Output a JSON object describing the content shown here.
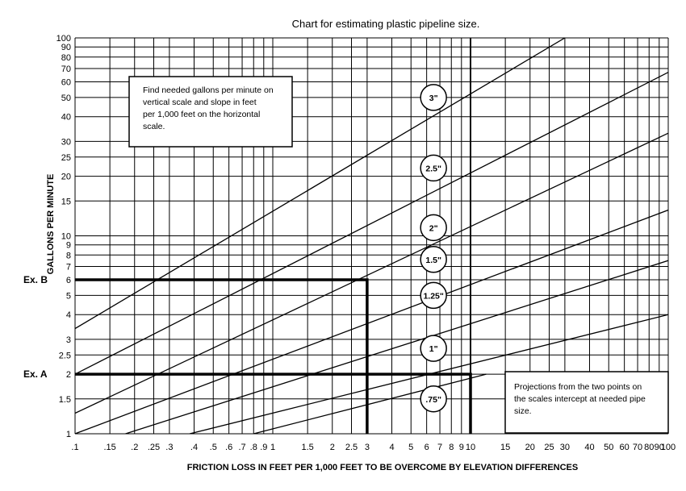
{
  "chart_data": {
    "type": "line",
    "title": "Chart for estimating plastic pipeline size.",
    "xlabel": "FRICTION LOSS IN FEET PER 1,000 FEET TO BE OVERCOME BY ELEVATION DIFFERENCES",
    "ylabel": "GALLONS PER MINUTE",
    "x_scale": "log",
    "y_scale": "log",
    "xlim": [
      0.1,
      100
    ],
    "ylim": [
      1,
      100
    ],
    "grid": true,
    "x_tick_labels": [
      ".1",
      ".15",
      ".2",
      ".25",
      ".3",
      ".4",
      ".5",
      ".6",
      ".7",
      ".8",
      ".9",
      "1",
      "1.5",
      "2",
      "2.5",
      "3",
      "4",
      "5",
      "6",
      "7",
      "8",
      "9",
      "10",
      "15",
      "20",
      "25",
      "30",
      "40",
      "50",
      "60",
      "70",
      "80",
      "90",
      "100"
    ],
    "x_tick_values": [
      0.1,
      0.15,
      0.2,
      0.25,
      0.3,
      0.4,
      0.5,
      0.6,
      0.7,
      0.8,
      0.9,
      1,
      1.5,
      2,
      2.5,
      3,
      4,
      5,
      6,
      7,
      8,
      9,
      10,
      15,
      20,
      25,
      30,
      40,
      50,
      60,
      70,
      80,
      90,
      100
    ],
    "y_tick_labels": [
      "1",
      "1.5",
      "2",
      "2.5",
      "3",
      "4",
      "5",
      "6",
      "7",
      "8",
      "9",
      "10",
      "15",
      "20",
      "25",
      "30",
      "40",
      "50",
      "60",
      "70",
      "80",
      "90",
      "100"
    ],
    "y_tick_values": [
      1,
      1.5,
      2,
      2.5,
      3,
      4,
      5,
      6,
      7,
      8,
      9,
      10,
      15,
      20,
      25,
      30,
      40,
      50,
      60,
      70,
      80,
      90,
      100
    ],
    "series": [
      {
        "name": "3\"",
        "points": [
          [
            0.1,
            3.4
          ],
          [
            30,
            100
          ]
        ]
      },
      {
        "name": "2.5\"",
        "points": [
          [
            0.1,
            2.0
          ],
          [
            100,
            67
          ]
        ]
      },
      {
        "name": "2\"",
        "points": [
          [
            0.1,
            1.27
          ],
          [
            100,
            33
          ]
        ]
      },
      {
        "name": "1.5\"",
        "points": [
          [
            0.1,
            1.0
          ],
          [
            100,
            13.5
          ]
        ]
      },
      {
        "name": "1.25\"",
        "points": [
          [
            0.18,
            1.0
          ],
          [
            100,
            7.5
          ]
        ]
      },
      {
        "name": "1\"",
        "points": [
          [
            0.38,
            1.0
          ],
          [
            100,
            4.0
          ]
        ]
      },
      {
        "name": ".75\"",
        "points": [
          [
            0.8,
            1.0
          ],
          [
            12,
            2.0
          ]
        ]
      }
    ],
    "pipe_labels": [
      {
        "text": "3\"",
        "gpm": 50
      },
      {
        "text": "2.5\"",
        "gpm": 22
      },
      {
        "text": "2\"",
        "gpm": 11
      },
      {
        "text": "1.5\"",
        "gpm": 7.6
      },
      {
        "text": "1.25\"",
        "gpm": 5.0
      },
      {
        "text": "1\"",
        "gpm": 2.7
      },
      {
        "text": ".75\"",
        "gpm": 1.5
      }
    ],
    "label_column_x": 6.5,
    "examples": [
      {
        "label": "Ex. B",
        "gpm": 6,
        "slope": 3
      },
      {
        "label": "Ex. A",
        "gpm": 2,
        "slope": 10
      }
    ],
    "emphasis_gridline_x": 10,
    "annotations": [
      "Find needed gallons per minute on vertical scale and slope in feet per 1,000 feet on the horizontal scale.",
      "Projections from the two points on the scales intercept at needed pipe size."
    ]
  }
}
